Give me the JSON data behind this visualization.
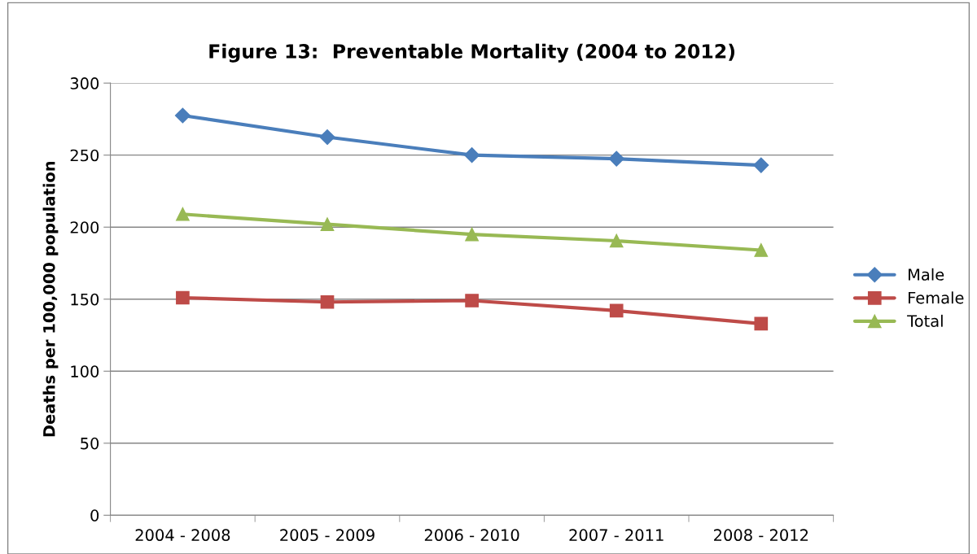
{
  "chart_data": {
    "type": "line",
    "title": "Figure 13:  Preventable Mortality (2004 to 2012)",
    "ylabel": "Deaths per 100,000 population",
    "categories": [
      "2004 - 2008",
      "2005 - 2009",
      "2006 - 2010",
      "2007 - 2011",
      "2008 - 2012"
    ],
    "series": [
      {
        "name": "Male",
        "color": "#4a7ebb",
        "marker": "diamond",
        "values": [
          277.5,
          262.5,
          250,
          247.5,
          243
        ]
      },
      {
        "name": "Female",
        "color": "#be4b48",
        "marker": "square",
        "values": [
          151,
          148,
          149,
          142,
          133
        ]
      },
      {
        "name": "Total",
        "color": "#98b954",
        "marker": "triangle",
        "values": [
          209,
          202,
          195,
          190.5,
          184
        ]
      }
    ],
    "ylim": [
      0,
      300
    ],
    "yticks": [
      0,
      50,
      100,
      150,
      200,
      250,
      300
    ],
    "grid": "y",
    "legend": "right",
    "line_style": "solid"
  }
}
